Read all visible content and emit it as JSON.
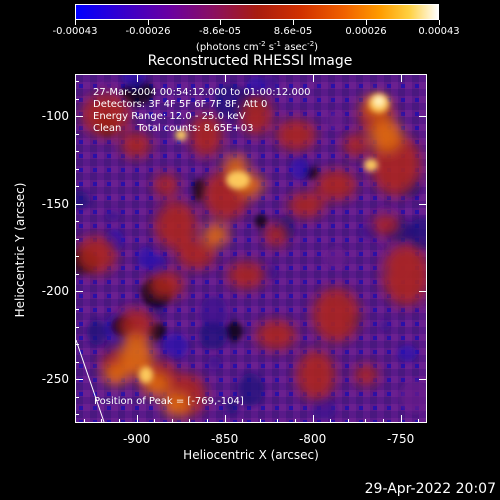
{
  "colorbar": {
    "tick_labels": [
      "-0.00043",
      "-0.00026",
      "-8.6e-05",
      "8.6e-05",
      "0.00026",
      "0.00043"
    ],
    "unit_text": [
      "(photons cm",
      "-2",
      " s",
      "-1",
      " asec",
      "-2",
      ")"
    ]
  },
  "title": "Reconstructed RHESSI Image",
  "info": {
    "time_range": "27-Mar-2004 00:54:12.000 to 01:00:12.000",
    "detectors": "Detectors: 3F 4F 5F 6F 7F 8F, Att 0",
    "energy_range": "Energy Range: 12.0 - 25.0 keV",
    "clean": "Clean     Total counts: 8.65E+03"
  },
  "peak_text": "Position of Peak = [-769,-104]",
  "axes": {
    "x_label": "Heliocentric X (arcsec)",
    "y_label": "Heliocentric Y (arcsec)",
    "x_ticks": [
      "-900",
      "-850",
      "-800",
      "-750"
    ],
    "y_ticks": [
      "-100",
      "-150",
      "-200",
      "-250"
    ],
    "x_range": [
      -935,
      -735
    ],
    "y_range": [
      -275,
      -76
    ]
  },
  "timestamp": "29-Apr-2022 20:07"
}
